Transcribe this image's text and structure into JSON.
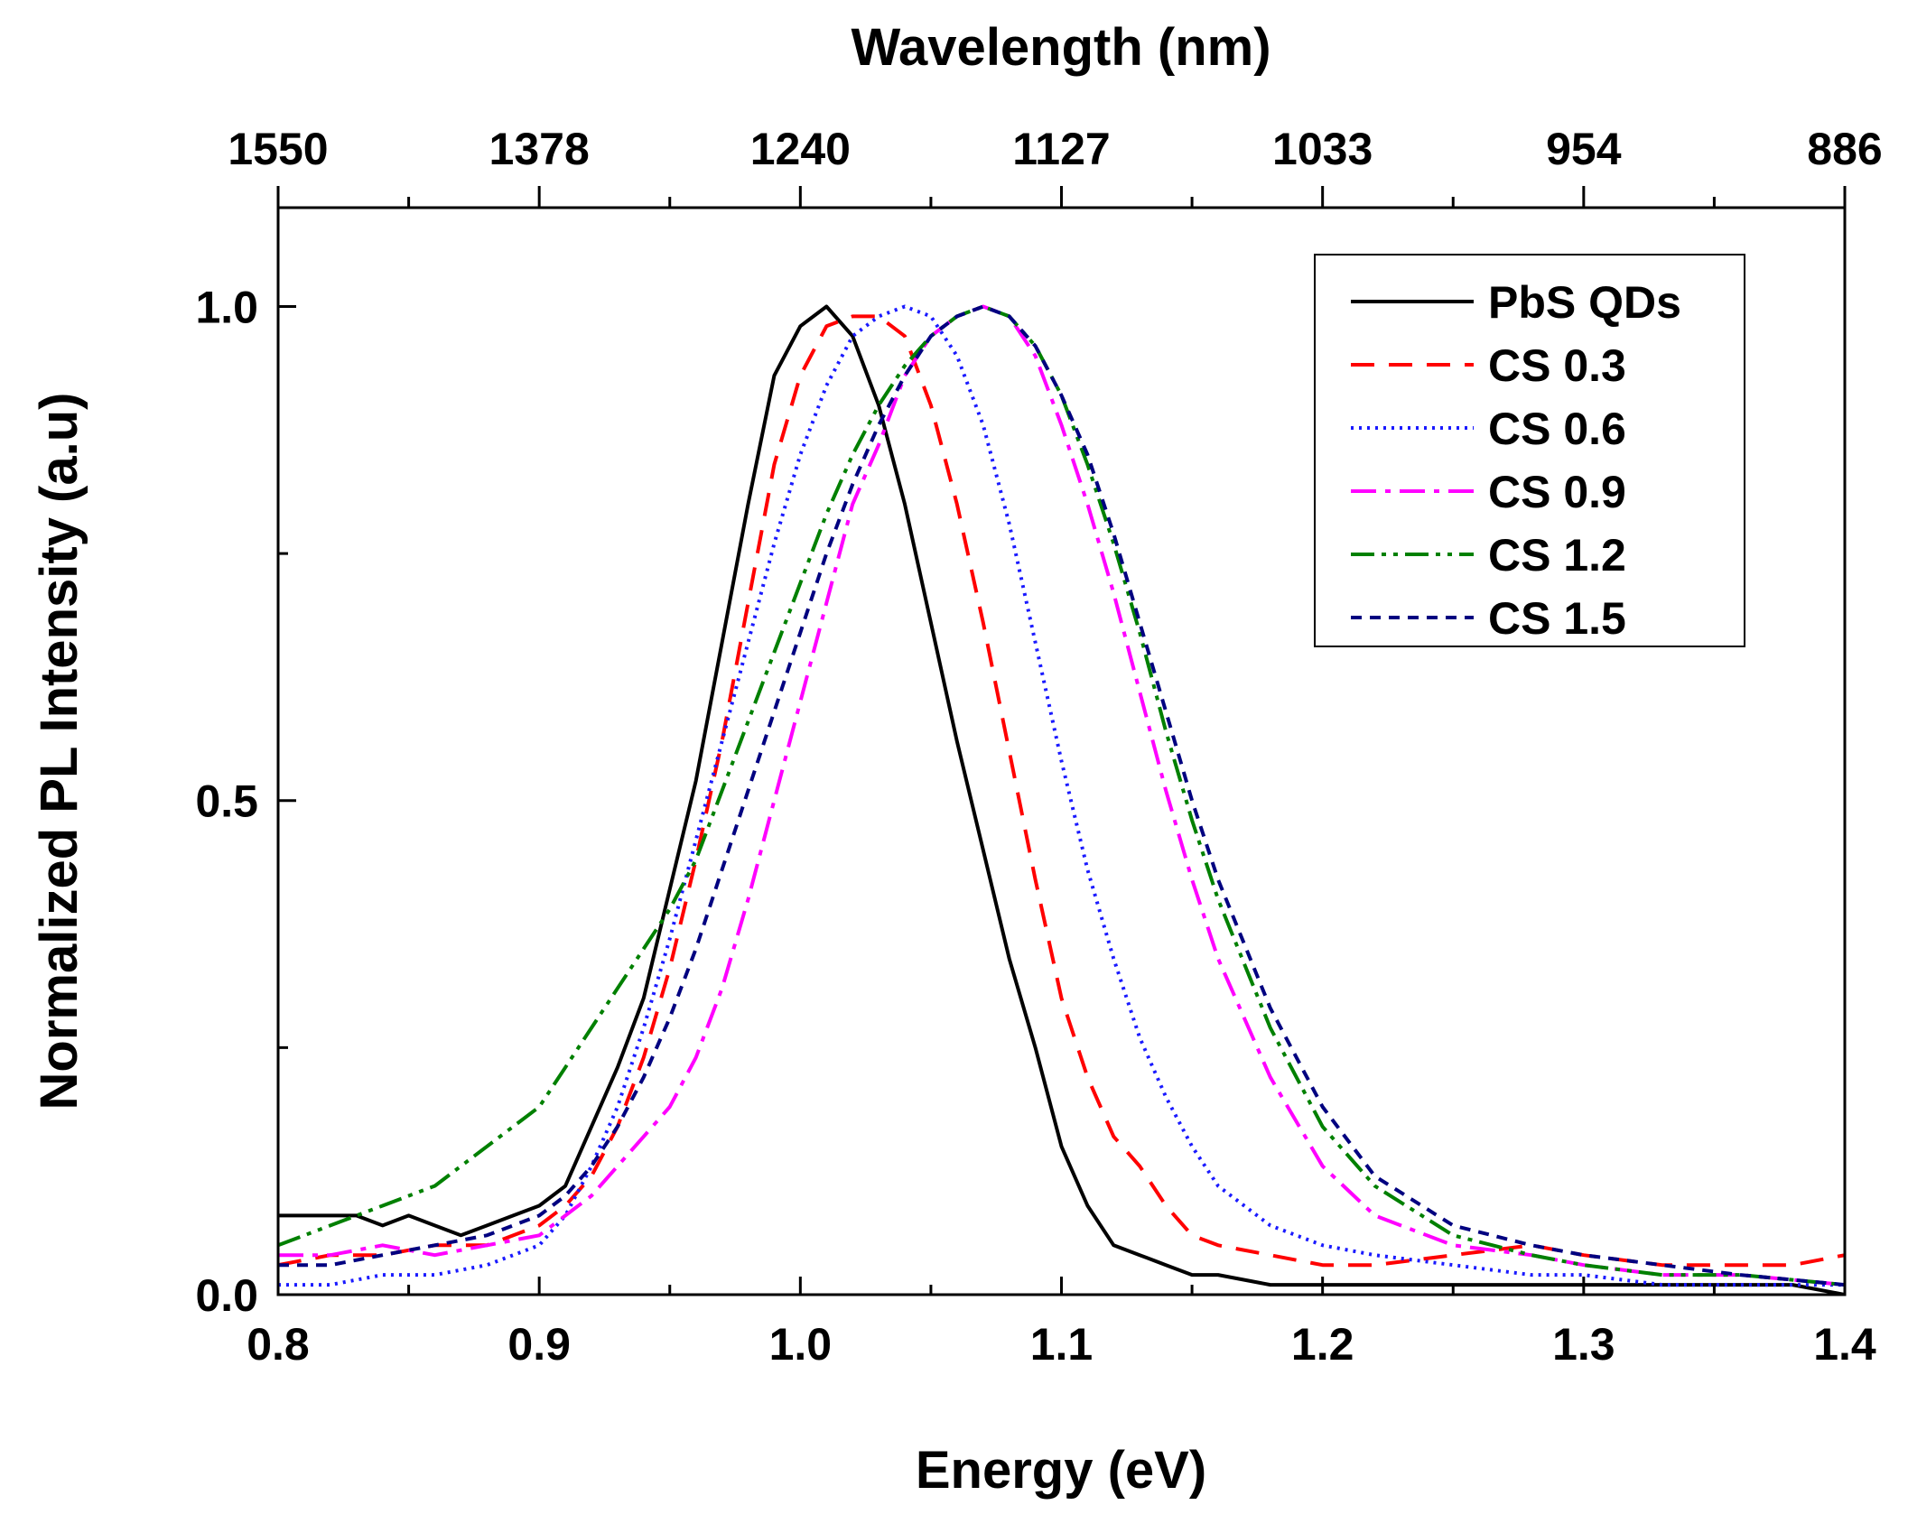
{
  "chart_data": {
    "type": "line",
    "title": "",
    "xlabel": "Energy (eV)",
    "ylabel": "Normalized PL Intensity (a.u)",
    "top_xlabel": "Wavelength (nm)",
    "xlim": [
      0.8,
      1.4
    ],
    "ylim": [
      0.0,
      1.1
    ],
    "x_ticks": [
      0.8,
      0.9,
      1.0,
      1.1,
      1.2,
      1.3,
      1.4
    ],
    "x_tick_labels": [
      "0.8",
      "0.9",
      "1.0",
      "1.1",
      "1.2",
      "1.3",
      "1.4"
    ],
    "y_ticks": [
      0.0,
      0.5,
      1.0
    ],
    "y_tick_labels": [
      "0.0",
      "0.5",
      "1.0"
    ],
    "top_ticks": [
      0.8,
      0.9,
      1.0,
      1.1,
      1.2,
      1.3,
      1.4
    ],
    "top_tick_labels": [
      "1550",
      "1378",
      "1240",
      "1127",
      "1033",
      "954",
      "886"
    ],
    "grid": false,
    "legend_position": "top-right",
    "series": [
      {
        "name": "PbS QDs",
        "color": "#000000",
        "dash": "solid",
        "x": [
          0.8,
          0.81,
          0.82,
          0.83,
          0.84,
          0.85,
          0.86,
          0.87,
          0.88,
          0.89,
          0.9,
          0.91,
          0.92,
          0.93,
          0.94,
          0.95,
          0.96,
          0.97,
          0.98,
          0.99,
          1.0,
          1.01,
          1.02,
          1.03,
          1.04,
          1.05,
          1.06,
          1.07,
          1.08,
          1.09,
          1.1,
          1.11,
          1.12,
          1.13,
          1.14,
          1.15,
          1.16,
          1.18,
          1.2,
          1.22,
          1.25,
          1.28,
          1.3,
          1.33,
          1.36,
          1.38,
          1.4
        ],
        "y": [
          0.08,
          0.08,
          0.08,
          0.08,
          0.07,
          0.08,
          0.07,
          0.06,
          0.07,
          0.08,
          0.09,
          0.11,
          0.17,
          0.23,
          0.3,
          0.41,
          0.52,
          0.66,
          0.8,
          0.93,
          0.98,
          1.0,
          0.97,
          0.9,
          0.8,
          0.68,
          0.56,
          0.45,
          0.34,
          0.25,
          0.15,
          0.09,
          0.05,
          0.04,
          0.03,
          0.02,
          0.02,
          0.01,
          0.01,
          0.01,
          0.01,
          0.01,
          0.01,
          0.01,
          0.01,
          0.01,
          0.0
        ]
      },
      {
        "name": "CS 0.3",
        "color": "#ff0000",
        "dash": "dashed",
        "x": [
          0.8,
          0.82,
          0.84,
          0.86,
          0.88,
          0.9,
          0.91,
          0.92,
          0.93,
          0.94,
          0.95,
          0.96,
          0.97,
          0.98,
          0.99,
          1.0,
          1.01,
          1.02,
          1.03,
          1.04,
          1.05,
          1.06,
          1.07,
          1.08,
          1.09,
          1.1,
          1.11,
          1.12,
          1.13,
          1.14,
          1.15,
          1.16,
          1.18,
          1.2,
          1.22,
          1.25,
          1.28,
          1.3,
          1.33,
          1.36,
          1.38,
          1.4
        ],
        "y": [
          0.03,
          0.04,
          0.04,
          0.05,
          0.05,
          0.07,
          0.09,
          0.12,
          0.17,
          0.24,
          0.33,
          0.44,
          0.56,
          0.7,
          0.84,
          0.93,
          0.98,
          0.99,
          0.99,
          0.97,
          0.9,
          0.8,
          0.68,
          0.55,
          0.42,
          0.3,
          0.22,
          0.16,
          0.13,
          0.09,
          0.06,
          0.05,
          0.04,
          0.03,
          0.03,
          0.04,
          0.05,
          0.04,
          0.03,
          0.03,
          0.03,
          0.04
        ]
      },
      {
        "name": "CS 0.6",
        "color": "#1a1aff",
        "dash": "dotted",
        "x": [
          0.8,
          0.82,
          0.84,
          0.86,
          0.88,
          0.9,
          0.91,
          0.92,
          0.93,
          0.94,
          0.95,
          0.96,
          0.97,
          0.98,
          0.99,
          1.0,
          1.01,
          1.02,
          1.03,
          1.04,
          1.05,
          1.06,
          1.07,
          1.08,
          1.09,
          1.1,
          1.11,
          1.12,
          1.13,
          1.14,
          1.15,
          1.16,
          1.18,
          1.2,
          1.22,
          1.25,
          1.28,
          1.3,
          1.33,
          1.36,
          1.4
        ],
        "y": [
          0.01,
          0.01,
          0.02,
          0.02,
          0.03,
          0.05,
          0.08,
          0.13,
          0.19,
          0.27,
          0.36,
          0.46,
          0.56,
          0.66,
          0.76,
          0.85,
          0.92,
          0.97,
          0.99,
          1.0,
          0.99,
          0.95,
          0.88,
          0.78,
          0.66,
          0.54,
          0.43,
          0.34,
          0.26,
          0.2,
          0.15,
          0.11,
          0.07,
          0.05,
          0.04,
          0.03,
          0.02,
          0.02,
          0.01,
          0.01,
          0.01
        ]
      },
      {
        "name": "CS 0.9",
        "color": "#ff00ff",
        "dash": "dashdot",
        "x": [
          0.8,
          0.82,
          0.84,
          0.86,
          0.88,
          0.9,
          0.91,
          0.92,
          0.93,
          0.94,
          0.95,
          0.96,
          0.97,
          0.98,
          0.99,
          1.0,
          1.01,
          1.02,
          1.03,
          1.04,
          1.05,
          1.06,
          1.07,
          1.08,
          1.09,
          1.1,
          1.11,
          1.12,
          1.13,
          1.14,
          1.15,
          1.16,
          1.18,
          1.2,
          1.22,
          1.25,
          1.28,
          1.3,
          1.33,
          1.36,
          1.4
        ],
        "y": [
          0.04,
          0.04,
          0.05,
          0.04,
          0.05,
          0.06,
          0.08,
          0.1,
          0.13,
          0.16,
          0.19,
          0.24,
          0.31,
          0.4,
          0.5,
          0.6,
          0.7,
          0.8,
          0.86,
          0.93,
          0.97,
          0.99,
          1.0,
          0.99,
          0.95,
          0.88,
          0.8,
          0.71,
          0.61,
          0.51,
          0.42,
          0.34,
          0.22,
          0.13,
          0.08,
          0.05,
          0.04,
          0.03,
          0.02,
          0.02,
          0.01
        ]
      },
      {
        "name": "CS 1.2",
        "color": "#008000",
        "dash": "dashdotdot",
        "x": [
          0.8,
          0.82,
          0.84,
          0.86,
          0.88,
          0.9,
          0.91,
          0.92,
          0.93,
          0.94,
          0.95,
          0.96,
          0.97,
          0.98,
          0.99,
          1.0,
          1.01,
          1.02,
          1.03,
          1.04,
          1.05,
          1.06,
          1.07,
          1.08,
          1.09,
          1.1,
          1.11,
          1.12,
          1.13,
          1.14,
          1.15,
          1.16,
          1.18,
          1.2,
          1.22,
          1.25,
          1.28,
          1.3,
          1.33,
          1.36,
          1.4
        ],
        "y": [
          0.05,
          0.07,
          0.09,
          0.11,
          0.15,
          0.19,
          0.23,
          0.27,
          0.31,
          0.35,
          0.39,
          0.44,
          0.51,
          0.58,
          0.65,
          0.72,
          0.79,
          0.85,
          0.9,
          0.94,
          0.97,
          0.99,
          1.0,
          0.99,
          0.96,
          0.91,
          0.84,
          0.76,
          0.67,
          0.57,
          0.48,
          0.4,
          0.27,
          0.17,
          0.11,
          0.06,
          0.04,
          0.03,
          0.02,
          0.02,
          0.01
        ]
      },
      {
        "name": "CS 1.5",
        "color": "#000080",
        "dash": "shortdash",
        "x": [
          0.8,
          0.82,
          0.84,
          0.86,
          0.88,
          0.9,
          0.91,
          0.92,
          0.93,
          0.94,
          0.95,
          0.96,
          0.97,
          0.98,
          0.99,
          1.0,
          1.01,
          1.02,
          1.03,
          1.04,
          1.05,
          1.06,
          1.07,
          1.08,
          1.09,
          1.1,
          1.11,
          1.12,
          1.13,
          1.14,
          1.15,
          1.16,
          1.18,
          1.2,
          1.22,
          1.25,
          1.28,
          1.3,
          1.33,
          1.36,
          1.4
        ],
        "y": [
          0.03,
          0.03,
          0.04,
          0.05,
          0.06,
          0.08,
          0.1,
          0.13,
          0.17,
          0.22,
          0.28,
          0.35,
          0.43,
          0.51,
          0.59,
          0.67,
          0.75,
          0.82,
          0.88,
          0.93,
          0.97,
          0.99,
          1.0,
          0.99,
          0.96,
          0.91,
          0.85,
          0.77,
          0.68,
          0.59,
          0.5,
          0.42,
          0.29,
          0.19,
          0.12,
          0.07,
          0.05,
          0.04,
          0.03,
          0.02,
          0.01
        ]
      }
    ]
  }
}
